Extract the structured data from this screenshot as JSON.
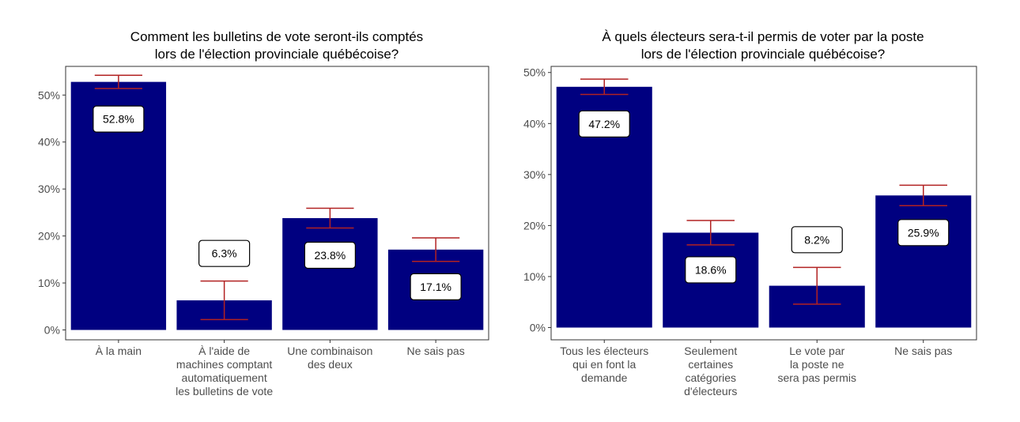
{
  "chart_data": [
    {
      "type": "bar",
      "title": [
        "Comment les bulletins de vote seront-ils comptés",
        "lors de l'élection provinciale québécoise?"
      ],
      "categories": [
        [
          "À la main"
        ],
        [
          "À l'aide de",
          "machines comptant",
          "automatiquement",
          "les bulletins de vote"
        ],
        [
          "Une combinaison",
          "des deux"
        ],
        [
          "Ne sais pas"
        ]
      ],
      "values": [
        52.8,
        6.3,
        23.8,
        17.1
      ],
      "value_labels": [
        "52.8%",
        "6.3%",
        "23.8%",
        "17.1%"
      ],
      "error_bars": [
        [
          51.4,
          54.2
        ],
        [
          2.2,
          10.4
        ],
        [
          21.7,
          25.9
        ],
        [
          14.6,
          19.6
        ]
      ],
      "yticks": [
        0,
        10,
        20,
        30,
        40,
        50
      ],
      "ytick_labels": [
        "0%",
        "10%",
        "20%",
        "30%",
        "40%",
        "50%"
      ],
      "ylim": [
        -2.1,
        56.1
      ],
      "xlabel": "",
      "ylabel": "",
      "grid": false,
      "bar_color": "#000080",
      "error_color": "#b22222"
    },
    {
      "type": "bar",
      "title": [
        "À quels électeurs sera-t-il permis de voter par la poste",
        "lors de l'élection provinciale québécoise?"
      ],
      "categories": [
        [
          "Tous les électeurs",
          "qui en font la",
          "demande"
        ],
        [
          "Seulement",
          "certaines",
          "catégories",
          "d'électeurs"
        ],
        [
          "Le vote par",
          "la poste ne",
          "sera pas permis"
        ],
        [
          "Ne sais pas"
        ]
      ],
      "values": [
        47.2,
        18.6,
        8.2,
        25.9
      ],
      "value_labels": [
        "47.2%",
        "18.6%",
        "8.2%",
        "25.9%"
      ],
      "error_bars": [
        [
          45.7,
          48.7
        ],
        [
          16.2,
          21.0
        ],
        [
          4.6,
          11.8
        ],
        [
          23.9,
          27.9
        ]
      ],
      "yticks": [
        0,
        10,
        20,
        30,
        40,
        50
      ],
      "ytick_labels": [
        "0%",
        "10%",
        "20%",
        "30%",
        "40%",
        "50%"
      ],
      "ylim": [
        -2.4,
        51.2
      ],
      "xlabel": "",
      "ylabel": "",
      "grid": false,
      "bar_color": "#000080",
      "error_color": "#b22222"
    }
  ]
}
